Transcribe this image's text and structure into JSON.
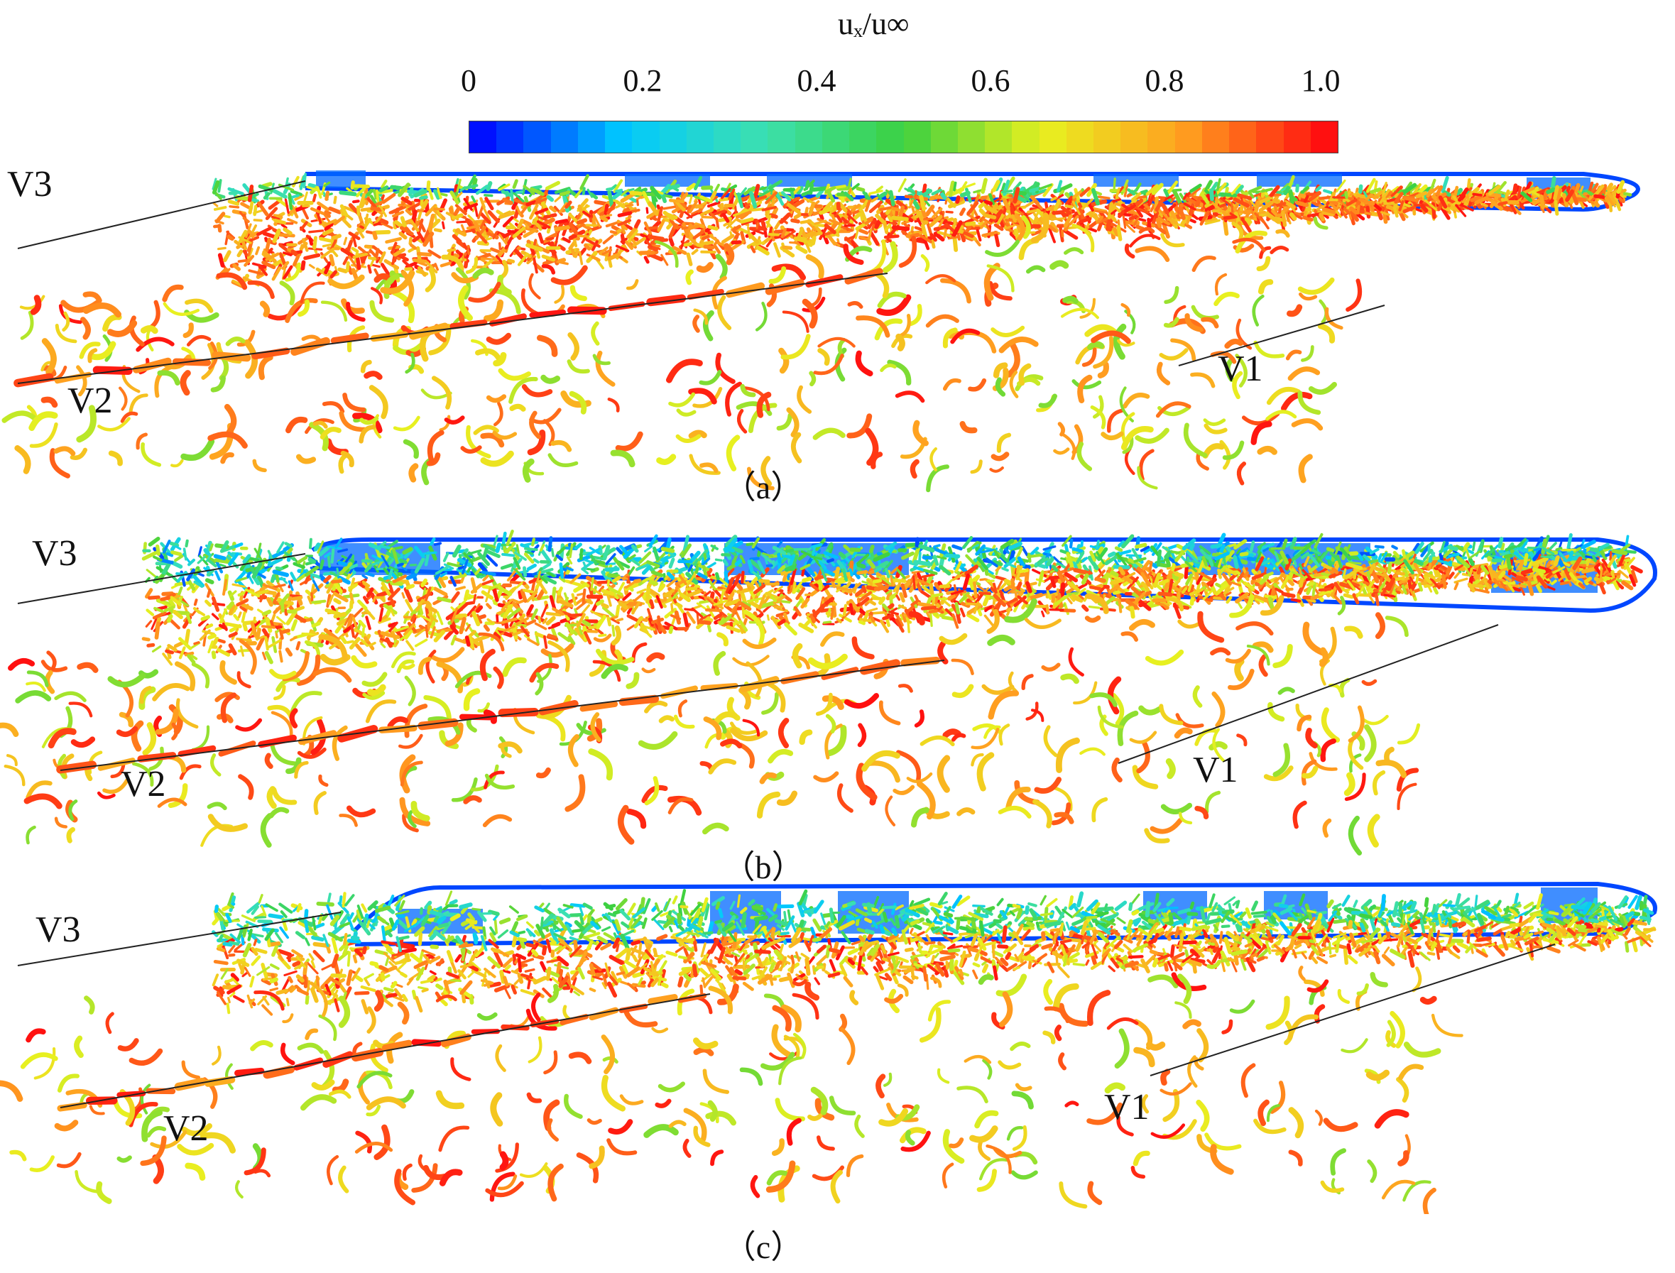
{
  "colorbar": {
    "title": "uₓ/u∞",
    "ticks": [
      "0",
      "0.2",
      "0.4",
      "0.6",
      "0.8",
      "1.0"
    ],
    "min": 0,
    "max": 1.0,
    "levels": 32,
    "colors": [
      "#0010ff",
      "#00c8ff",
      "#3ce0b0",
      "#3cd040",
      "#e8f020",
      "#ffa020",
      "#ff1010"
    ]
  },
  "panels": [
    {
      "caption": "（a）",
      "labels": {
        "v1": "V1",
        "v2": "V2",
        "v3": "V3"
      }
    },
    {
      "caption": "（b）",
      "labels": {
        "v1": "V1",
        "v2": "V2",
        "v3": "V3"
      }
    },
    {
      "caption": "（c）",
      "labels": {
        "v1": "V1",
        "v2": "V2",
        "v3": "V3"
      }
    }
  ]
}
